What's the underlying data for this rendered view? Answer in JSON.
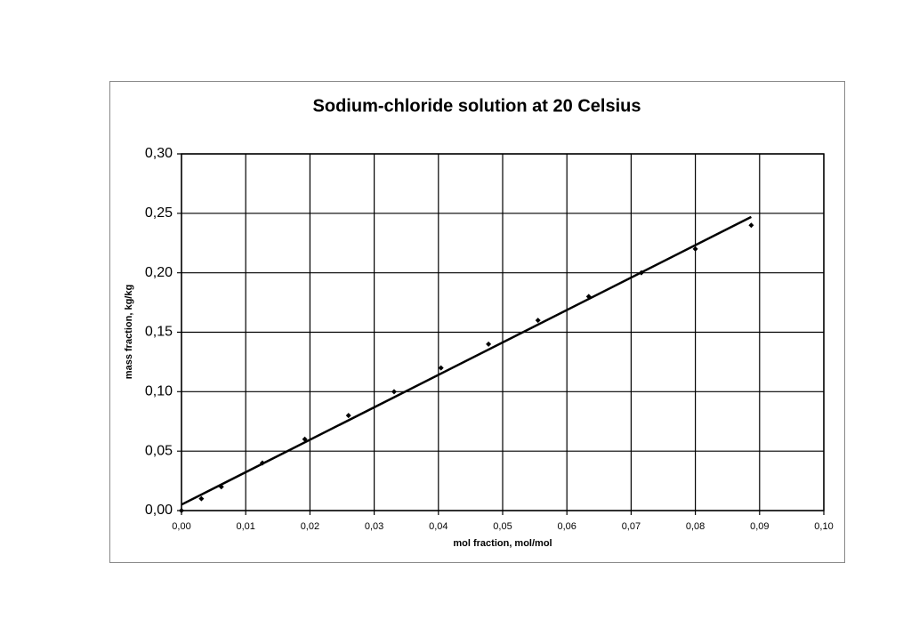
{
  "chart_data": {
    "type": "scatter",
    "title": "Sodium-chloride solution at 20 Celsius",
    "x_label": "mol fraction, mol/mol",
    "y_label": "mass fraction, kg/kg",
    "x": [
      0,
      0.0031,
      0.0062,
      0.0126,
      0.0192,
      0.026,
      0.0331,
      0.0404,
      0.0478,
      0.0555,
      0.0634,
      0.0716,
      0.08,
      0.0887
    ],
    "values": [
      0,
      0.01,
      0.02,
      0.04,
      0.06,
      0.08,
      0.1,
      0.12,
      0.14,
      0.16,
      0.18,
      0.2,
      0.22,
      0.24
    ],
    "color": "#000000",
    "trendline": {
      "x": [
        0,
        0.0887
      ],
      "values": [
        0.005,
        0.247
      ],
      "color": "#000000"
    },
    "xlim": [
      0,
      0.1
    ],
    "ylim": [
      0,
      0.3
    ],
    "xticks": [
      {
        "value": 0,
        "label": "0,00"
      },
      {
        "value": 0.01,
        "label": "0,01"
      },
      {
        "value": 0.02,
        "label": "0,02"
      },
      {
        "value": 0.03,
        "label": "0,03"
      },
      {
        "value": 0.04,
        "label": "0,04"
      },
      {
        "value": 0.05,
        "label": "0,05"
      },
      {
        "value": 0.06,
        "label": "0,06"
      },
      {
        "value": 0.07,
        "label": "0,07"
      },
      {
        "value": 0.08,
        "label": "0,08"
      },
      {
        "value": 0.09,
        "label": "0,09"
      },
      {
        "value": 0.1,
        "label": "0,10"
      }
    ],
    "yticks": [
      {
        "value": 0,
        "label": "0,00"
      },
      {
        "value": 0.05,
        "label": "0,05"
      },
      {
        "value": 0.1,
        "label": "0,10"
      },
      {
        "value": 0.15,
        "label": "0,15"
      },
      {
        "value": 0.2,
        "label": "0,20"
      },
      {
        "value": 0.25,
        "label": "0,25"
      },
      {
        "value": 0.3,
        "label": "0,30"
      }
    ],
    "grid": true
  }
}
